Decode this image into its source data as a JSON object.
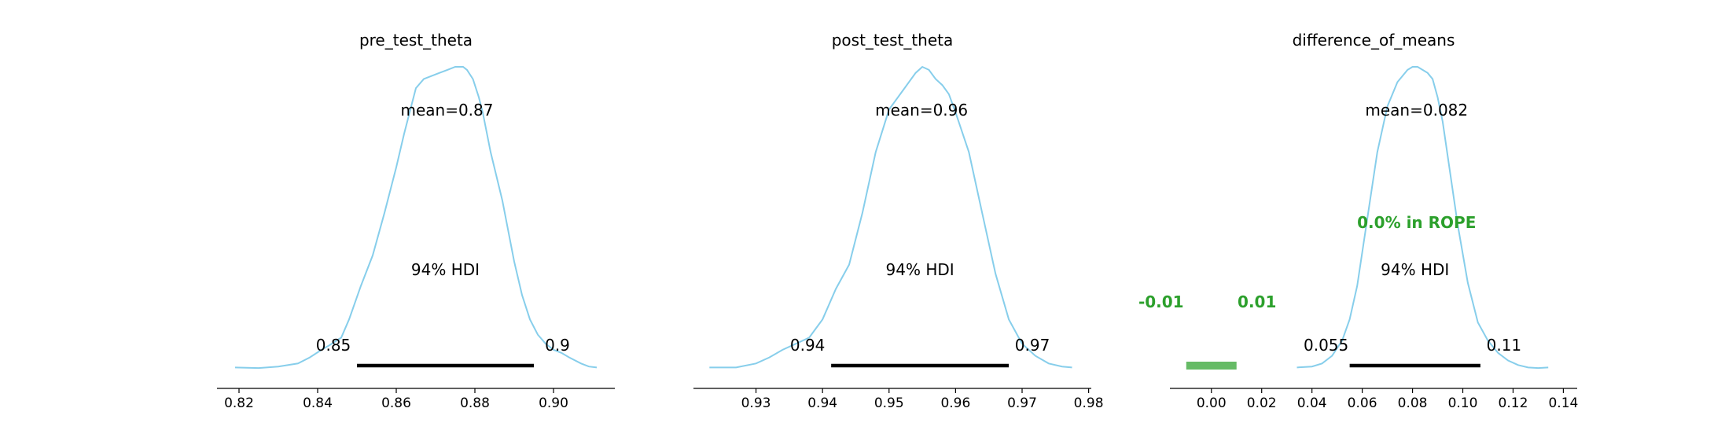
{
  "chart_data": [
    {
      "type": "area",
      "title": "pre_test_theta",
      "xlabel": "",
      "ylabel": "",
      "xlim": [
        0.8144,
        0.9156
      ],
      "xticks": [
        0.82,
        0.84,
        0.86,
        0.88,
        0.9
      ],
      "tick_labels": [
        "0.82",
        "0.84",
        "0.86",
        "0.88",
        "0.90"
      ],
      "density": {
        "x": [
          0.819,
          0.825,
          0.83,
          0.835,
          0.838,
          0.841,
          0.843,
          0.846,
          0.848,
          0.851,
          0.854,
          0.857,
          0.86,
          0.862,
          0.864,
          0.865,
          0.867,
          0.869,
          0.871,
          0.873,
          0.875,
          0.877,
          0.878,
          0.8795,
          0.88,
          0.881,
          0.882,
          0.884,
          0.887,
          0.89,
          0.892,
          0.894,
          0.896,
          0.898,
          0.9,
          0.902,
          0.904,
          0.907,
          0.909,
          0.911
        ],
        "y": [
          0.012,
          0.01,
          0.015,
          0.025,
          0.045,
          0.07,
          0.085,
          0.11,
          0.17,
          0.28,
          0.38,
          0.52,
          0.67,
          0.78,
          0.88,
          0.93,
          0.96,
          0.97,
          0.98,
          0.99,
          1.0,
          1.0,
          0.99,
          0.96,
          0.94,
          0.9,
          0.85,
          0.72,
          0.56,
          0.36,
          0.25,
          0.17,
          0.12,
          0.09,
          0.07,
          0.06,
          0.045,
          0.025,
          0.015,
          0.012
        ]
      },
      "mean_label": "mean=0.87",
      "hdi_label": "94% HDI",
      "hdi": [
        0.85,
        0.895
      ],
      "hdi_labels": [
        "0.85",
        "0.9"
      ],
      "line_color": "#87ceeb",
      "hdi_color": "#000000"
    },
    {
      "type": "area",
      "title": "post_test_theta",
      "xlabel": "",
      "ylabel": "",
      "xlim": [
        0.9206,
        0.9804
      ],
      "xticks": [
        0.93,
        0.94,
        0.95,
        0.96,
        0.97,
        0.98
      ],
      "tick_labels": [
        "0.93",
        "0.94",
        "0.95",
        "0.96",
        "0.97",
        "0.98"
      ],
      "density": {
        "x": [
          0.923,
          0.927,
          0.93,
          0.932,
          0.934,
          0.936,
          0.938,
          0.94,
          0.942,
          0.944,
          0.946,
          0.948,
          0.95,
          0.952,
          0.954,
          0.955,
          0.956,
          0.957,
          0.958,
          0.959,
          0.96,
          0.962,
          0.964,
          0.966,
          0.968,
          0.97,
          0.972,
          0.974,
          0.976,
          0.9775
        ],
        "y": [
          0.012,
          0.012,
          0.025,
          0.045,
          0.07,
          0.09,
          0.11,
          0.17,
          0.27,
          0.35,
          0.52,
          0.72,
          0.86,
          0.92,
          0.98,
          1.0,
          0.99,
          0.96,
          0.94,
          0.91,
          0.85,
          0.72,
          0.52,
          0.32,
          0.17,
          0.09,
          0.05,
          0.025,
          0.015,
          0.012
        ]
      },
      "mean_label": "mean=0.96",
      "hdi_label": "94% HDI",
      "hdi": [
        0.9413,
        0.968
      ],
      "hdi_labels": [
        "0.94",
        "0.97"
      ],
      "line_color": "#87ceeb",
      "hdi_color": "#000000"
    },
    {
      "type": "area",
      "title": "difference_of_means",
      "xlabel": "",
      "ylabel": "",
      "xlim": [
        -0.0165,
        0.1455
      ],
      "xticks": [
        0.0,
        0.02,
        0.04,
        0.06,
        0.08,
        0.1,
        0.12,
        0.14
      ],
      "tick_labels": [
        "0.00",
        "0.02",
        "0.04",
        "0.06",
        "0.08",
        "0.10",
        "0.12",
        "0.14"
      ],
      "density": {
        "x": [
          0.034,
          0.04,
          0.044,
          0.048,
          0.052,
          0.055,
          0.058,
          0.062,
          0.066,
          0.07,
          0.074,
          0.078,
          0.08,
          0.082,
          0.084,
          0.086,
          0.088,
          0.09,
          0.092,
          0.095,
          0.098,
          0.102,
          0.106,
          0.11,
          0.114,
          0.118,
          0.122,
          0.126,
          0.13,
          0.134
        ],
        "y": [
          0.012,
          0.015,
          0.025,
          0.05,
          0.1,
          0.17,
          0.28,
          0.5,
          0.72,
          0.87,
          0.95,
          0.99,
          1.0,
          1.0,
          0.99,
          0.98,
          0.96,
          0.9,
          0.82,
          0.65,
          0.48,
          0.29,
          0.16,
          0.1,
          0.06,
          0.035,
          0.02,
          0.012,
          0.01,
          0.012
        ]
      },
      "mean_label": "mean=0.082",
      "hdi_label": "94% HDI",
      "hdi": [
        0.055,
        0.107
      ],
      "hdi_labels": [
        "0.055",
        "0.11"
      ],
      "rope": [
        -0.01,
        0.01
      ],
      "rope_labels": [
        "-0.01",
        "0.01"
      ],
      "rope_text": "0.0% in ROPE",
      "rope_color": "#2ca02c",
      "line_color": "#87ceeb",
      "hdi_color": "#000000"
    }
  ]
}
